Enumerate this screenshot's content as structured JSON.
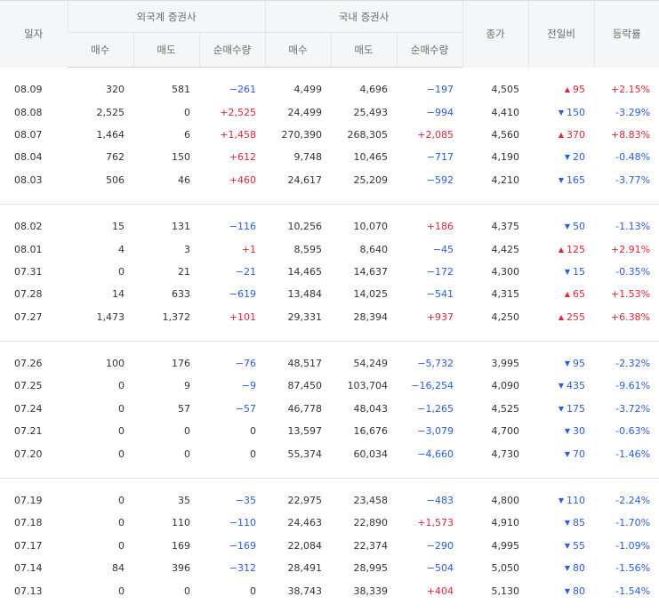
{
  "header": {
    "date": "일자",
    "foreign_group": "외국계 증권사",
    "domestic_group": "국내 증권사",
    "buy": "매수",
    "sell": "매도",
    "net": "순매수량",
    "close": "종가",
    "change": "전일비",
    "rate": "등락률"
  },
  "colors": {
    "up": "#e0263a",
    "down": "#2b5dd6"
  },
  "icons": {
    "up": "triangle-up-icon",
    "down": "triangle-down-icon"
  },
  "groups": [
    [
      {
        "date": "08.09",
        "f_buy": "320",
        "f_sell": "581",
        "f_net": "−261",
        "d_buy": "4,499",
        "d_sell": "4,696",
        "d_net": "−197",
        "close": "4,505",
        "dir": "up",
        "chg": "95",
        "rate": "+2.15%"
      },
      {
        "date": "08.08",
        "f_buy": "2,525",
        "f_sell": "0",
        "f_net": "+2,525",
        "d_buy": "24,499",
        "d_sell": "25,493",
        "d_net": "−994",
        "close": "4,410",
        "dir": "down",
        "chg": "150",
        "rate": "-3.29%"
      },
      {
        "date": "08.07",
        "f_buy": "1,464",
        "f_sell": "6",
        "f_net": "+1,458",
        "d_buy": "270,390",
        "d_sell": "268,305",
        "d_net": "+2,085",
        "close": "4,560",
        "dir": "up",
        "chg": "370",
        "rate": "+8.83%"
      },
      {
        "date": "08.04",
        "f_buy": "762",
        "f_sell": "150",
        "f_net": "+612",
        "d_buy": "9,748",
        "d_sell": "10,465",
        "d_net": "−717",
        "close": "4,190",
        "dir": "down",
        "chg": "20",
        "rate": "-0.48%"
      },
      {
        "date": "08.03",
        "f_buy": "506",
        "f_sell": "46",
        "f_net": "+460",
        "d_buy": "24,617",
        "d_sell": "25,209",
        "d_net": "−592",
        "close": "4,210",
        "dir": "down",
        "chg": "165",
        "rate": "-3.77%"
      }
    ],
    [
      {
        "date": "08.02",
        "f_buy": "15",
        "f_sell": "131",
        "f_net": "−116",
        "d_buy": "10,256",
        "d_sell": "10,070",
        "d_net": "+186",
        "close": "4,375",
        "dir": "down",
        "chg": "50",
        "rate": "-1.13%"
      },
      {
        "date": "08.01",
        "f_buy": "4",
        "f_sell": "3",
        "f_net": "+1",
        "d_buy": "8,595",
        "d_sell": "8,640",
        "d_net": "−45",
        "close": "4,425",
        "dir": "up",
        "chg": "125",
        "rate": "+2.91%"
      },
      {
        "date": "07.31",
        "f_buy": "0",
        "f_sell": "21",
        "f_net": "−21",
        "d_buy": "14,465",
        "d_sell": "14,637",
        "d_net": "−172",
        "close": "4,300",
        "dir": "down",
        "chg": "15",
        "rate": "-0.35%"
      },
      {
        "date": "07.28",
        "f_buy": "14",
        "f_sell": "633",
        "f_net": "−619",
        "d_buy": "13,484",
        "d_sell": "14,025",
        "d_net": "−541",
        "close": "4,315",
        "dir": "up",
        "chg": "65",
        "rate": "+1.53%"
      },
      {
        "date": "07.27",
        "f_buy": "1,473",
        "f_sell": "1,372",
        "f_net": "+101",
        "d_buy": "29,331",
        "d_sell": "28,394",
        "d_net": "+937",
        "close": "4,250",
        "dir": "up",
        "chg": "255",
        "rate": "+6.38%"
      }
    ],
    [
      {
        "date": "07.26",
        "f_buy": "100",
        "f_sell": "176",
        "f_net": "−76",
        "d_buy": "48,517",
        "d_sell": "54,249",
        "d_net": "−5,732",
        "close": "3,995",
        "dir": "down",
        "chg": "95",
        "rate": "-2.32%"
      },
      {
        "date": "07.25",
        "f_buy": "0",
        "f_sell": "9",
        "f_net": "−9",
        "d_buy": "87,450",
        "d_sell": "103,704",
        "d_net": "−16,254",
        "close": "4,090",
        "dir": "down",
        "chg": "435",
        "rate": "-9.61%"
      },
      {
        "date": "07.24",
        "f_buy": "0",
        "f_sell": "57",
        "f_net": "−57",
        "d_buy": "46,778",
        "d_sell": "48,043",
        "d_net": "−1,265",
        "close": "4,525",
        "dir": "down",
        "chg": "175",
        "rate": "-3.72%"
      },
      {
        "date": "07.21",
        "f_buy": "0",
        "f_sell": "0",
        "f_net": "0",
        "d_buy": "13,597",
        "d_sell": "16,676",
        "d_net": "−3,079",
        "close": "4,700",
        "dir": "down",
        "chg": "30",
        "rate": "-0.63%"
      },
      {
        "date": "07.20",
        "f_buy": "0",
        "f_sell": "0",
        "f_net": "0",
        "d_buy": "55,374",
        "d_sell": "60,034",
        "d_net": "−4,660",
        "close": "4,730",
        "dir": "down",
        "chg": "70",
        "rate": "-1.46%"
      }
    ],
    [
      {
        "date": "07.19",
        "f_buy": "0",
        "f_sell": "35",
        "f_net": "−35",
        "d_buy": "22,975",
        "d_sell": "23,458",
        "d_net": "−483",
        "close": "4,800",
        "dir": "down",
        "chg": "110",
        "rate": "-2.24%"
      },
      {
        "date": "07.18",
        "f_buy": "0",
        "f_sell": "110",
        "f_net": "−110",
        "d_buy": "24,463",
        "d_sell": "22,890",
        "d_net": "+1,573",
        "close": "4,910",
        "dir": "down",
        "chg": "85",
        "rate": "-1.70%"
      },
      {
        "date": "07.17",
        "f_buy": "0",
        "f_sell": "169",
        "f_net": "−169",
        "d_buy": "22,084",
        "d_sell": "22,374",
        "d_net": "−290",
        "close": "4,995",
        "dir": "down",
        "chg": "55",
        "rate": "-1.09%"
      },
      {
        "date": "07.14",
        "f_buy": "84",
        "f_sell": "396",
        "f_net": "−312",
        "d_buy": "28,491",
        "d_sell": "28,995",
        "d_net": "−504",
        "close": "5,050",
        "dir": "down",
        "chg": "80",
        "rate": "-1.56%"
      },
      {
        "date": "07.13",
        "f_buy": "0",
        "f_sell": "0",
        "f_net": "0",
        "d_buy": "38,743",
        "d_sell": "38,339",
        "d_net": "+404",
        "close": "5,130",
        "dir": "down",
        "chg": "80",
        "rate": "-1.54%"
      }
    ]
  ]
}
